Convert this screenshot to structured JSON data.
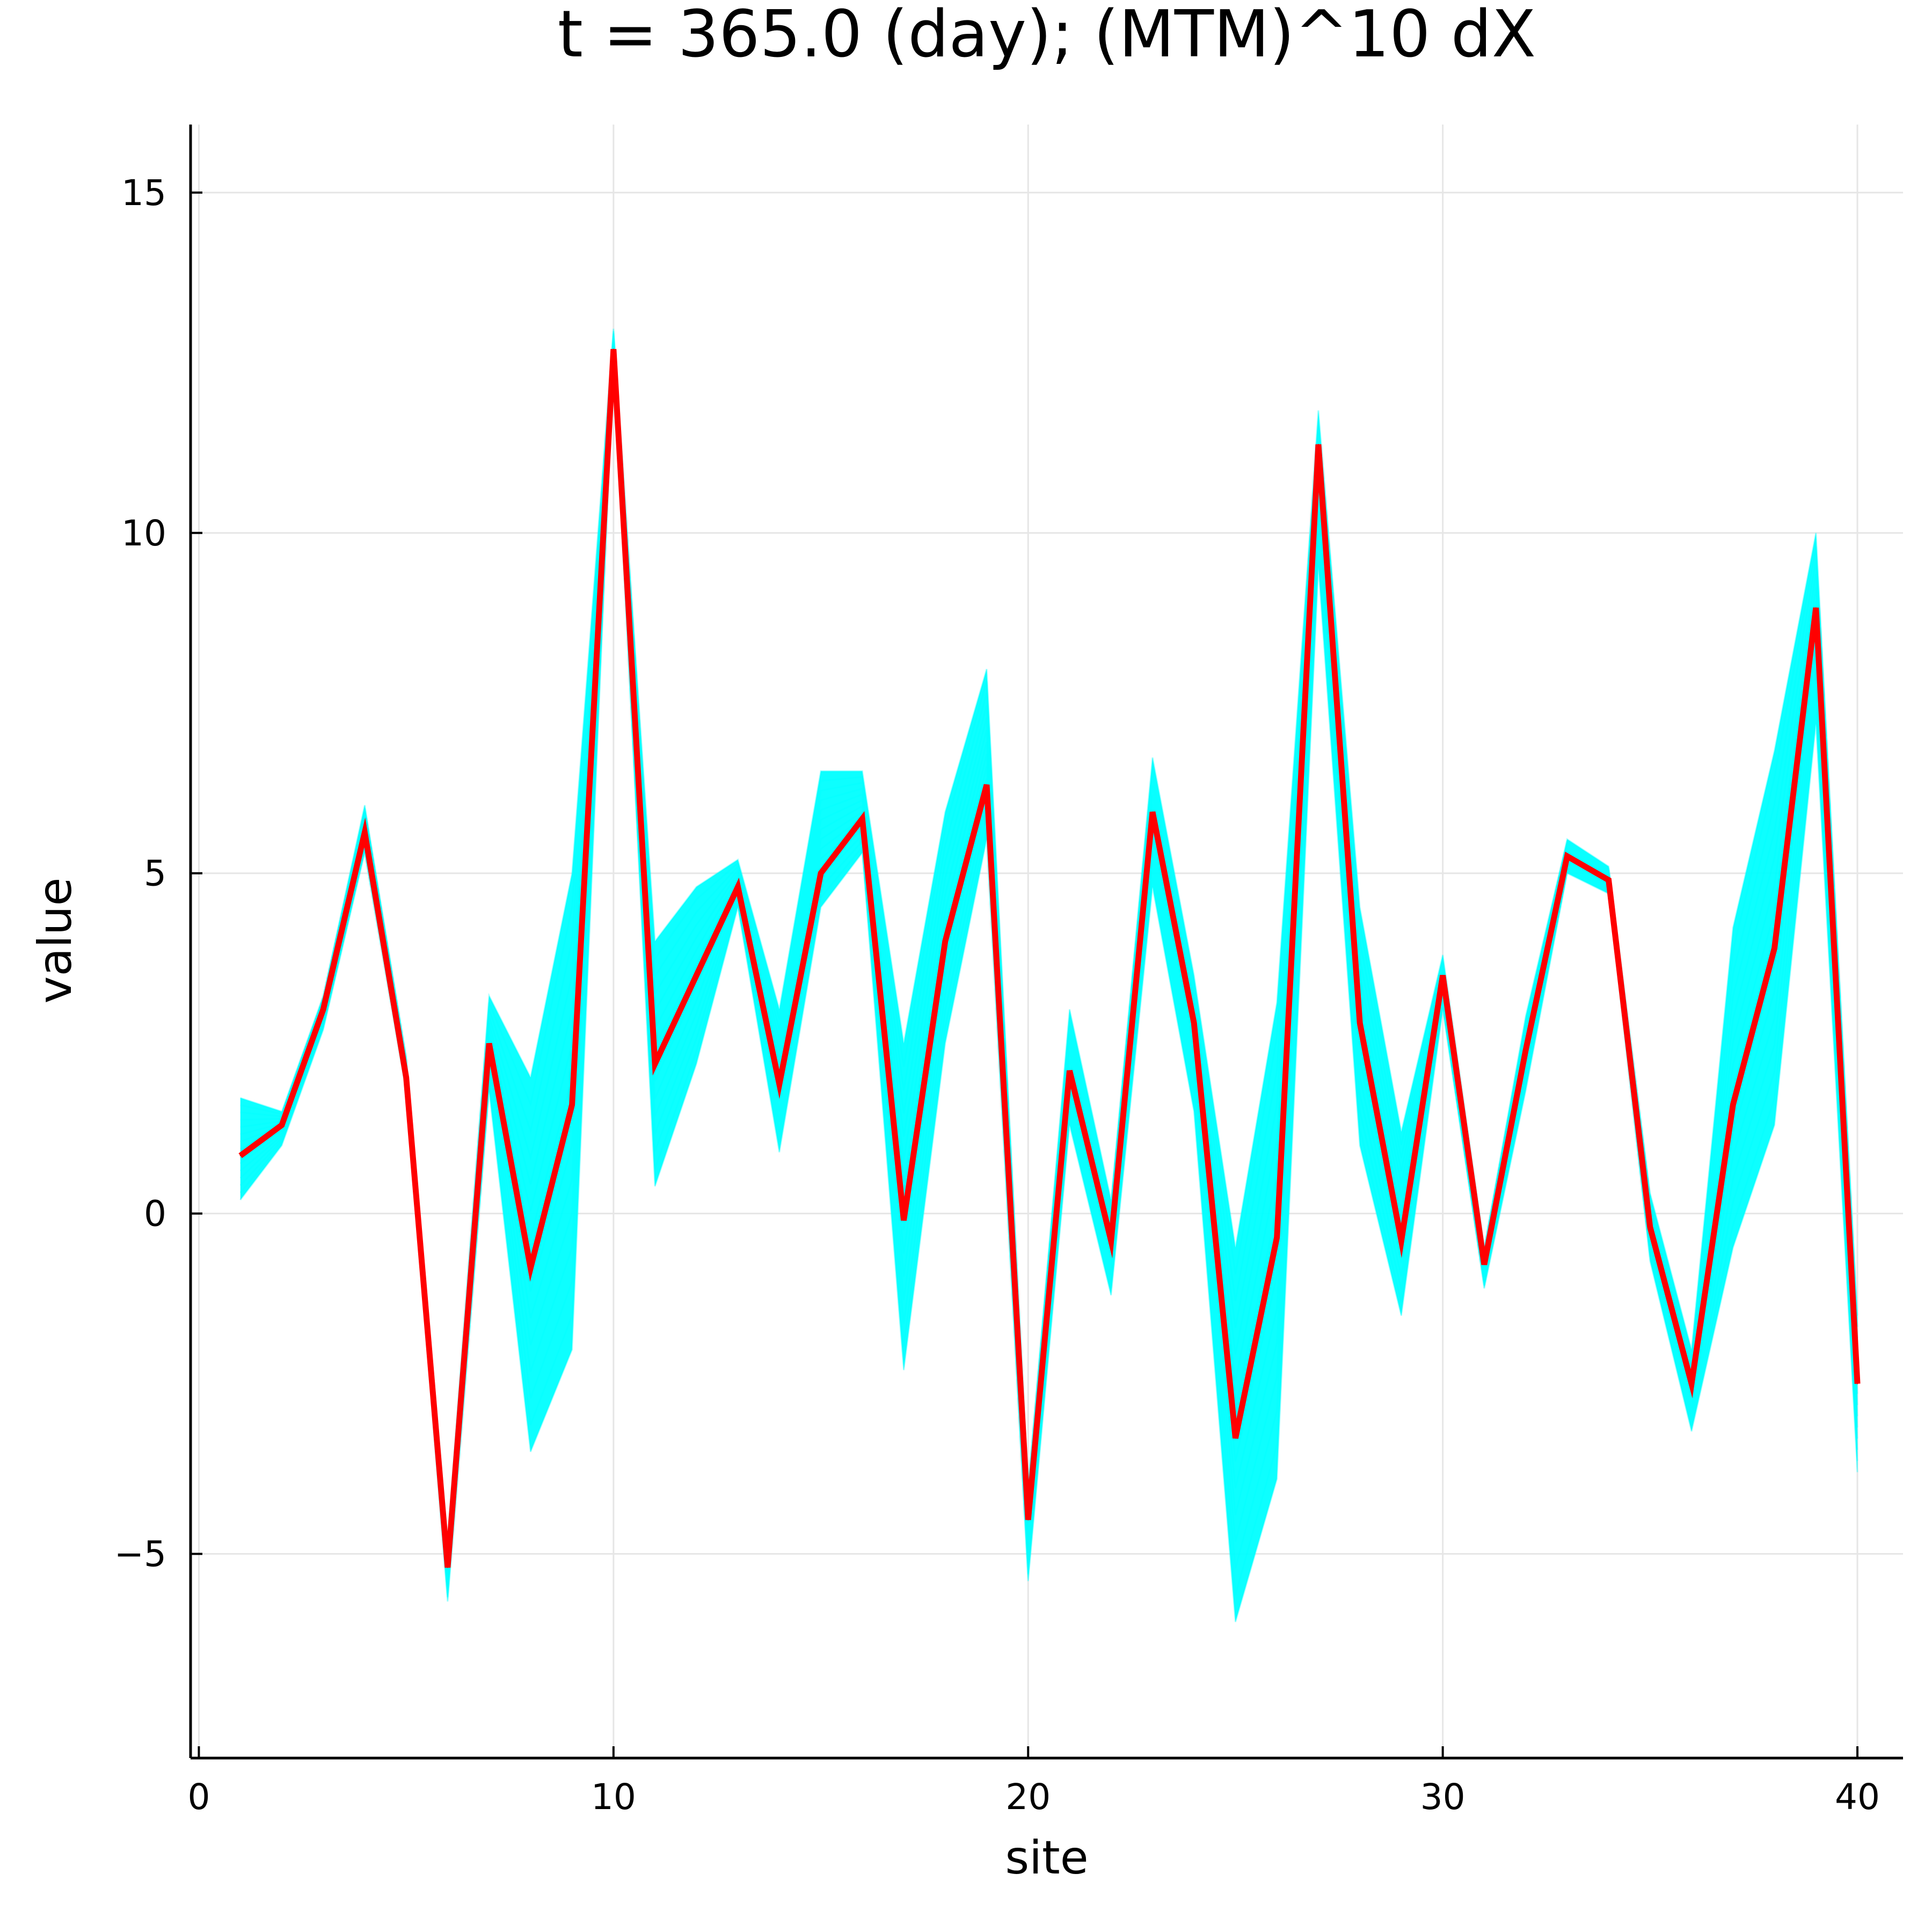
{
  "chart_data": {
    "type": "line",
    "title": "t = 365.0 (day); (MTM)^10 dX",
    "xlabel": "site",
    "ylabel": "value",
    "xlim": [
      -0.2,
      41.1
    ],
    "ylim": [
      -8.0,
      16.0
    ],
    "xticks": [
      0,
      10,
      20,
      30,
      40
    ],
    "xtick_labels": [
      "0",
      "10",
      "20",
      "30",
      "40"
    ],
    "yticks": [
      -5,
      0,
      5,
      10,
      15
    ],
    "ytick_labels": [
      "−5",
      "0",
      "5",
      "10",
      "15"
    ],
    "grid": true,
    "legend": "none",
    "x": [
      1,
      2,
      3,
      4,
      5,
      6,
      7,
      8,
      9,
      10,
      11,
      12,
      13,
      14,
      15,
      16,
      17,
      18,
      19,
      20,
      21,
      22,
      23,
      24,
      25,
      26,
      27,
      28,
      29,
      30,
      31,
      32,
      33,
      34,
      35,
      36,
      37,
      38,
      39,
      40
    ],
    "series": [
      {
        "color": "#ff0000",
        "style": "bold-line",
        "values": [
          0.85,
          1.3,
          3.0,
          5.6,
          2.0,
          -5.2,
          2.5,
          -0.8,
          1.6,
          12.7,
          2.2,
          3.5,
          4.8,
          1.9,
          5.0,
          5.8,
          -0.1,
          4.0,
          6.3,
          -4.5,
          2.1,
          -0.4,
          5.9,
          2.8,
          -3.3,
          -0.35,
          11.3,
          2.8,
          -0.4,
          3.5,
          -0.75,
          2.4,
          5.25,
          4.9,
          -0.2,
          -2.5,
          1.6,
          3.9,
          8.9,
          -2.5
        ]
      },
      {
        "color": "#00ffff",
        "style": "ensemble-band",
        "lower": [
          0.2,
          1.0,
          2.7,
          5.3,
          1.8,
          -5.7,
          1.8,
          -3.5,
          -2.0,
          12.5,
          0.4,
          2.2,
          4.5,
          0.9,
          4.5,
          5.3,
          -2.3,
          2.5,
          5.5,
          -5.4,
          1.3,
          -1.2,
          4.8,
          1.5,
          -6.0,
          -3.9,
          9.5,
          1.0,
          -1.5,
          3.0,
          -1.1,
          1.8,
          5.0,
          4.7,
          -0.7,
          -3.2,
          -0.5,
          1.3,
          7.2,
          -3.8
        ],
        "upper": [
          1.7,
          1.5,
          3.2,
          6.0,
          2.3,
          -4.8,
          3.2,
          2.0,
          5.0,
          13.0,
          4.0,
          4.8,
          5.2,
          3.0,
          6.5,
          6.5,
          2.5,
          5.9,
          8.0,
          -4.0,
          3.0,
          0.2,
          6.7,
          3.5,
          -0.5,
          3.1,
          11.8,
          4.5,
          1.2,
          3.8,
          -0.5,
          2.9,
          5.5,
          5.1,
          0.3,
          -2.0,
          4.2,
          6.8,
          10.0,
          -1.5
        ]
      }
    ]
  }
}
